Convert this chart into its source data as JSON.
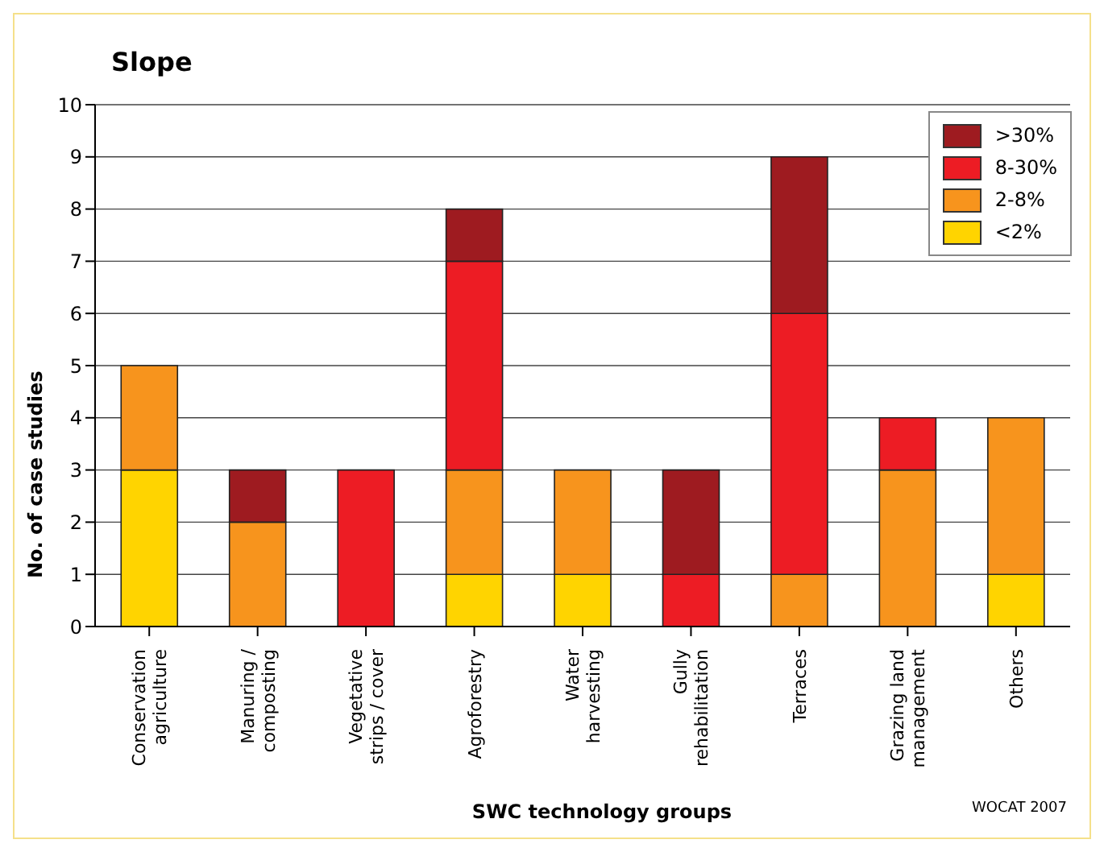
{
  "chart_data": {
    "type": "bar",
    "title": "Slope",
    "xlabel": "SWC technology groups",
    "ylabel": "No. of case studies",
    "categories": [
      "Conservation agriculture",
      "Manuring / composting",
      "Vegetative strips / cover",
      "Agroforestry",
      "Water harvesting",
      "Gully rehabilitation",
      "Terraces",
      "Grazing land management",
      "Others"
    ],
    "stacked": true,
    "series": [
      {
        "name": "<2%",
        "color": "#ffd400",
        "values": [
          3,
          0,
          0,
          1,
          1,
          0,
          0,
          0,
          1
        ]
      },
      {
        "name": "2-8%",
        "color": "#f7941d",
        "values": [
          2,
          2,
          0,
          2,
          2,
          0,
          1,
          3,
          3
        ]
      },
      {
        "name": "8-30%",
        "color": "#ed1c24",
        "values": [
          0,
          0,
          3,
          4,
          0,
          1,
          5,
          1,
          0
        ]
      },
      {
        "name": ">30%",
        "color": "#9e1b20",
        "values": [
          0,
          1,
          0,
          1,
          0,
          2,
          3,
          0,
          0
        ]
      }
    ],
    "ylim": [
      0,
      10
    ],
    "yticks": [
      0,
      1,
      2,
      3,
      4,
      5,
      6,
      7,
      8,
      9,
      10
    ],
    "grid": "y",
    "legend": "top right",
    "annotations": [
      "WOCAT 2007"
    ]
  }
}
